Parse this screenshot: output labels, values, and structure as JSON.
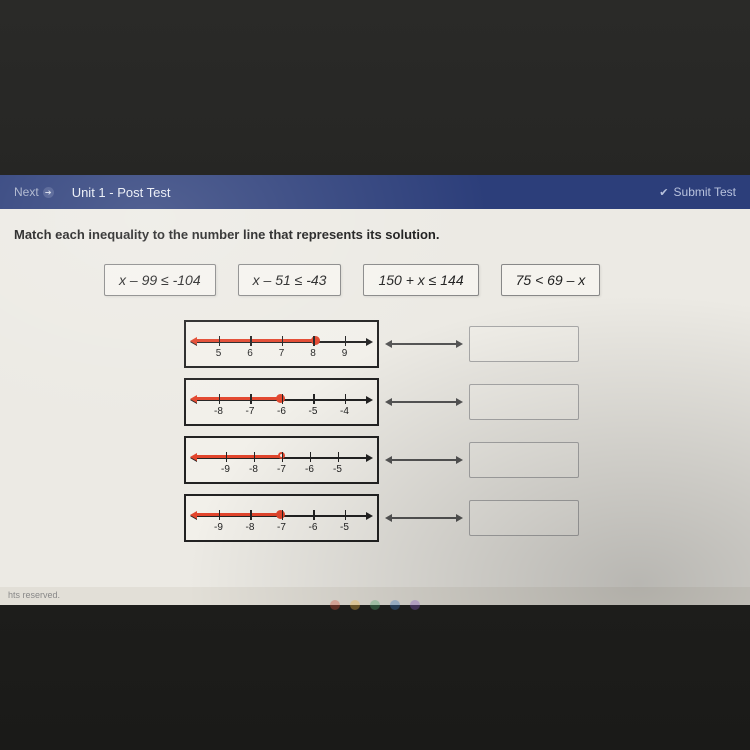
{
  "navbar": {
    "next_label": "Next",
    "unit_title": "Unit 1 - Post Test",
    "submit_label": "Submit Test"
  },
  "prompt": "Match each inequality to the number line that represents its solution.",
  "tiles": [
    "x – 99 ≤ -104",
    "x – 51 ≤ -43",
    "150 + x  ≤  144",
    "75 < 69 – x"
  ],
  "number_lines": [
    {
      "ticks": [
        "5",
        "6",
        "7",
        "8",
        "9"
      ],
      "tick_pct": [
        14,
        32,
        50,
        68,
        86
      ],
      "ray_left_pct": 4,
      "ray_right_pct": 68,
      "dot_type": "closed",
      "dot_pct": 68
    },
    {
      "ticks": [
        "-8",
        "-7",
        "-6",
        "-5",
        "-4"
      ],
      "tick_pct": [
        14,
        32,
        50,
        68,
        86
      ],
      "ray_left_pct": 4,
      "ray_right_pct": 50,
      "dot_type": "closed",
      "dot_pct": 50
    },
    {
      "ticks": [
        "-9",
        "-8",
        "-7",
        "-6",
        "-5"
      ],
      "tick_pct": [
        18,
        34,
        50,
        66,
        82
      ],
      "ray_left_pct": 4,
      "ray_right_pct": 50,
      "dot_type": "open",
      "dot_pct": 50
    },
    {
      "ticks": [
        "-9",
        "-8",
        "-7",
        "-6",
        "-5"
      ],
      "tick_pct": [
        14,
        32,
        50,
        68,
        86
      ],
      "ray_left_pct": 4,
      "ray_right_pct": 50,
      "dot_type": "closed",
      "dot_pct": 50
    }
  ],
  "footer_text": "hts reserved.",
  "colors": {
    "navbar_bg": "#2c3e7a",
    "ray": "#e2452c",
    "axis": "#222222",
    "page_bg": "#eceae4"
  },
  "taskbar_dots": [
    "#d94c3a",
    "#f0b840",
    "#4aa96c",
    "#3a78c2",
    "#8a5ac2"
  ]
}
